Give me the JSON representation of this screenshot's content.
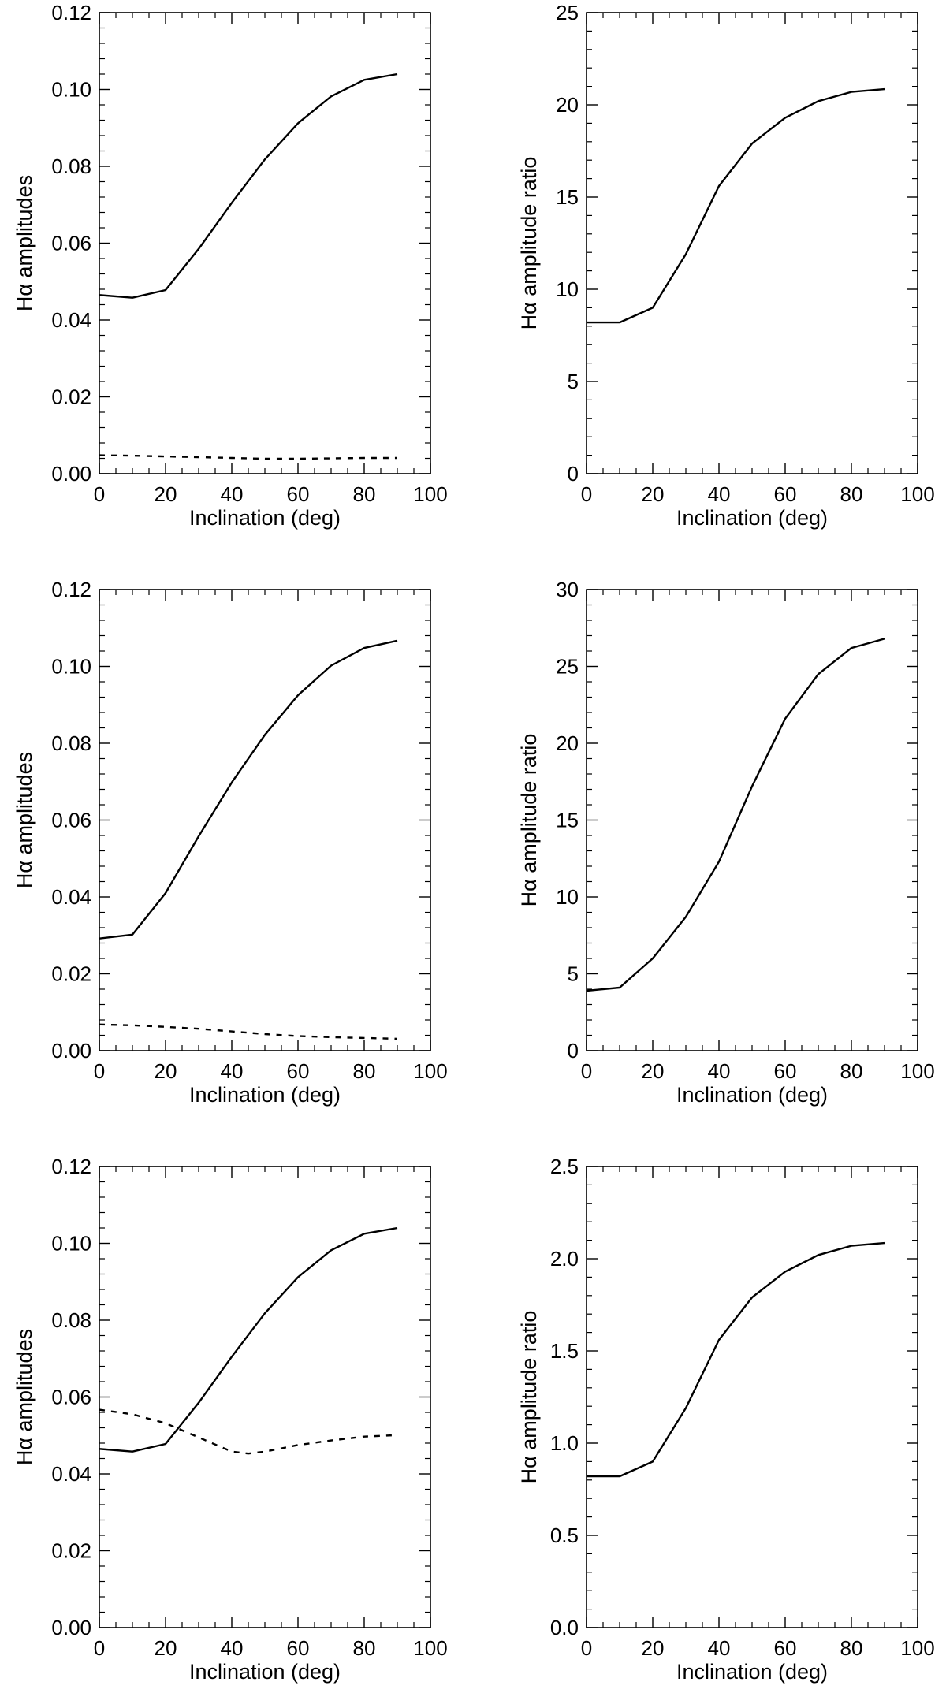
{
  "chart_data": [
    {
      "type": "line",
      "xlabel": "Inclination (deg)",
      "ylabel": "Hα amplitudes",
      "xlim": [
        0,
        100
      ],
      "ylim": [
        0,
        0.12
      ],
      "xticks": [
        "0",
        "20",
        "40",
        "60",
        "80",
        "100"
      ],
      "yticks": [
        "0.00",
        "0.02",
        "0.04",
        "0.06",
        "0.08",
        "0.10",
        "0.12"
      ],
      "series": [
        {
          "name": "solid",
          "style": "solid",
          "x": [
            0,
            10,
            20,
            30,
            40,
            50,
            60,
            70,
            80,
            90
          ],
          "y": [
            0.0465,
            0.0458,
            0.0478,
            0.0585,
            0.0705,
            0.0818,
            0.0912,
            0.0982,
            0.1025,
            0.104
          ]
        },
        {
          "name": "dotted",
          "style": "dotted",
          "x": [
            0,
            10,
            20,
            30,
            40,
            50,
            60,
            70,
            80,
            90
          ],
          "y": [
            0.0048,
            0.0047,
            0.0045,
            0.0043,
            0.0041,
            0.0039,
            0.0039,
            0.004,
            0.0041,
            0.0041
          ]
        }
      ]
    },
    {
      "type": "line",
      "xlabel": "Inclination (deg)",
      "ylabel": "Hα amplitude ratio",
      "xlim": [
        0,
        100
      ],
      "ylim": [
        0,
        25
      ],
      "xticks": [
        "0",
        "20",
        "40",
        "60",
        "80",
        "100"
      ],
      "yticks": [
        "0",
        "5",
        "10",
        "15",
        "20",
        "25"
      ],
      "series": [
        {
          "name": "ratio",
          "style": "solid",
          "x": [
            0,
            10,
            20,
            30,
            40,
            50,
            60,
            70,
            80,
            90
          ],
          "y": [
            8.2,
            8.2,
            9.0,
            11.9,
            15.6,
            17.9,
            19.3,
            20.2,
            20.7,
            20.85
          ]
        }
      ]
    },
    {
      "type": "line",
      "xlabel": "Inclination (deg)",
      "ylabel": "Hα amplitudes",
      "xlim": [
        0,
        100
      ],
      "ylim": [
        0,
        0.12
      ],
      "xticks": [
        "0",
        "20",
        "40",
        "60",
        "80",
        "100"
      ],
      "yticks": [
        "0.00",
        "0.02",
        "0.04",
        "0.06",
        "0.08",
        "0.10",
        "0.12"
      ],
      "series": [
        {
          "name": "solid",
          "style": "solid",
          "x": [
            0,
            10,
            20,
            30,
            40,
            50,
            60,
            70,
            80,
            90
          ],
          "y": [
            0.0292,
            0.0302,
            0.041,
            0.0558,
            0.0698,
            0.0822,
            0.0925,
            0.1002,
            0.1048,
            0.1067
          ]
        },
        {
          "name": "dotted",
          "style": "dotted",
          "x": [
            0,
            10,
            20,
            30,
            40,
            50,
            60,
            70,
            80,
            90
          ],
          "y": [
            0.0068,
            0.0066,
            0.0062,
            0.0057,
            0.005,
            0.0043,
            0.0038,
            0.0035,
            0.0033,
            0.0031
          ]
        }
      ]
    },
    {
      "type": "line",
      "xlabel": "Inclination (deg)",
      "ylabel": "Hα amplitude ratio",
      "xlim": [
        0,
        100
      ],
      "ylim": [
        0,
        30
      ],
      "xticks": [
        "0",
        "20",
        "40",
        "60",
        "80",
        "100"
      ],
      "yticks": [
        "0",
        "5",
        "10",
        "15",
        "20",
        "25",
        "30"
      ],
      "series": [
        {
          "name": "ratio",
          "style": "solid",
          "x": [
            0,
            10,
            20,
            30,
            40,
            50,
            60,
            70,
            80,
            90
          ],
          "y": [
            3.9,
            4.1,
            6.0,
            8.7,
            12.3,
            17.2,
            21.6,
            24.5,
            26.2,
            26.8
          ]
        }
      ]
    },
    {
      "type": "line",
      "xlabel": "Inclination (deg)",
      "ylabel": "Hα amplitudes",
      "xlim": [
        0,
        100
      ],
      "ylim": [
        0,
        0.12
      ],
      "xticks": [
        "0",
        "20",
        "40",
        "60",
        "80",
        "100"
      ],
      "yticks": [
        "0.00",
        "0.02",
        "0.04",
        "0.06",
        "0.08",
        "0.10",
        "0.12"
      ],
      "series": [
        {
          "name": "solid",
          "style": "solid",
          "x": [
            0,
            10,
            20,
            30,
            40,
            50,
            60,
            70,
            80,
            90
          ],
          "y": [
            0.0465,
            0.0458,
            0.0478,
            0.0585,
            0.0705,
            0.0818,
            0.0912,
            0.0982,
            0.1025,
            0.104
          ]
        },
        {
          "name": "dotted",
          "style": "dotted",
          "x": [
            0,
            10,
            20,
            30,
            40,
            45,
            50,
            60,
            70,
            80,
            90
          ],
          "y": [
            0.0567,
            0.0555,
            0.0532,
            0.0495,
            0.0458,
            0.0453,
            0.0458,
            0.0475,
            0.0487,
            0.0497,
            0.0501
          ]
        }
      ]
    },
    {
      "type": "line",
      "xlabel": "Inclination (deg)",
      "ylabel": "Hα amplitude ratio",
      "xlim": [
        0,
        100
      ],
      "ylim": [
        0,
        2.5
      ],
      "xticks": [
        "0",
        "20",
        "40",
        "60",
        "80",
        "100"
      ],
      "yticks": [
        "0.0",
        "0.5",
        "1.0",
        "1.5",
        "2.0",
        "2.5"
      ],
      "series": [
        {
          "name": "ratio",
          "style": "solid",
          "x": [
            0,
            10,
            20,
            30,
            40,
            50,
            60,
            70,
            80,
            90
          ],
          "y": [
            0.82,
            0.82,
            0.9,
            1.19,
            1.56,
            1.79,
            1.93,
            2.02,
            2.07,
            2.085
          ]
        }
      ]
    }
  ]
}
